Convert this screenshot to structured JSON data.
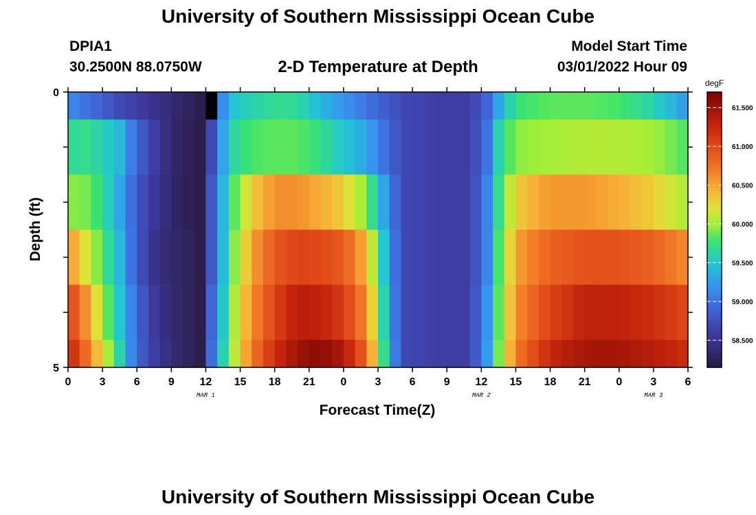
{
  "header": {
    "title": "University of Southern Mississippi Ocean Cube",
    "station_id": "DPIA1",
    "station_coords": "30.2500N  88.0750W",
    "plot_title": "2-D Temperature at Depth",
    "start_label": "Model Start Time",
    "start_value": "03/01/2022 Hour 09"
  },
  "footer": {
    "title": "University of Southern Mississippi Ocean Cube"
  },
  "chart_data": {
    "type": "heatmap",
    "title": "2-D Temperature at Depth",
    "xlabel": "Forecast Time(Z)",
    "ylabel": "Depth (ft)",
    "x_tick_labels": [
      "0",
      "3",
      "6",
      "9",
      "12",
      "15",
      "18",
      "21",
      "0",
      "3",
      "6",
      "9",
      "12",
      "15",
      "18",
      "21",
      "0",
      "3",
      "6"
    ],
    "date_labels": [
      {
        "label": "MAR 1",
        "tick_index": 4
      },
      {
        "label": "MAR 2",
        "tick_index": 12
      },
      {
        "label": "MAR 3",
        "tick_index": 17
      }
    ],
    "x_range_hours": [
      0,
      54
    ],
    "y_tick_labels": [
      "0",
      "5"
    ],
    "y_range_ft": [
      0,
      5
    ],
    "colorbar": {
      "unit": "degF",
      "tick_labels": [
        "61.500",
        "61.000",
        "60.500",
        "60.000",
        "59.500",
        "59.000",
        "58.500"
      ],
      "tick_values": [
        61.5,
        61.0,
        60.5,
        60.0,
        59.5,
        59.0,
        58.5
      ],
      "range": [
        58.15,
        61.7
      ]
    },
    "depth_layers_ft": [
      0.25,
      1.0,
      2.0,
      3.0,
      4.0,
      4.75
    ],
    "depth_layer_bounds_ft": [
      0,
      0.5,
      1.5,
      2.5,
      3.5,
      4.5,
      5.0
    ],
    "key_hours": [
      0,
      1.5,
      3,
      4.5,
      6,
      8,
      10,
      11.5,
      12,
      12.5,
      14,
      16,
      18,
      20,
      22,
      24,
      26,
      27.5,
      29,
      32,
      35,
      36.5,
      37.5,
      39,
      42,
      45,
      48,
      51,
      54
    ],
    "values": [
      [
        59.15,
        59.0,
        58.85,
        58.7,
        58.6,
        58.45,
        58.3,
        58.2,
        58.15,
        58.6,
        59.45,
        59.6,
        59.7,
        59.65,
        59.4,
        59.2,
        59.0,
        58.85,
        58.7,
        58.6,
        58.6,
        58.9,
        59.3,
        59.75,
        59.85,
        59.85,
        59.8,
        59.6,
        59.2
      ],
      [
        59.65,
        59.7,
        59.6,
        59.4,
        58.9,
        58.5,
        58.25,
        58.2,
        58.2,
        58.7,
        59.6,
        59.8,
        59.85,
        59.85,
        59.7,
        59.5,
        59.3,
        59.0,
        58.7,
        58.6,
        58.6,
        59.0,
        59.6,
        59.95,
        60.0,
        60.05,
        60.05,
        60.0,
        59.8
      ],
      [
        59.95,
        59.9,
        59.7,
        59.3,
        58.8,
        58.45,
        58.25,
        58.2,
        58.2,
        58.8,
        59.7,
        60.3,
        60.6,
        60.6,
        60.45,
        60.3,
        59.9,
        59.3,
        58.7,
        58.6,
        58.6,
        59.1,
        59.7,
        60.3,
        60.55,
        60.55,
        60.45,
        60.3,
        60.0
      ],
      [
        60.6,
        60.2,
        59.8,
        59.4,
        58.8,
        58.4,
        58.3,
        58.2,
        58.2,
        58.8,
        59.75,
        60.5,
        60.9,
        61.05,
        61.0,
        60.9,
        60.4,
        59.5,
        58.7,
        58.6,
        58.6,
        59.1,
        59.8,
        60.5,
        60.85,
        60.95,
        60.95,
        60.85,
        60.6
      ],
      [
        61.1,
        60.6,
        60.0,
        59.5,
        58.9,
        58.45,
        58.3,
        58.2,
        58.2,
        58.9,
        59.85,
        60.6,
        61.05,
        61.35,
        61.3,
        61.1,
        60.6,
        59.6,
        58.7,
        58.6,
        58.6,
        59.2,
        59.85,
        60.6,
        61.05,
        61.3,
        61.3,
        61.2,
        61.0
      ],
      [
        61.3,
        60.8,
        60.2,
        59.6,
        58.9,
        58.5,
        58.3,
        58.2,
        58.2,
        58.95,
        59.9,
        60.7,
        61.2,
        61.5,
        61.6,
        61.4,
        60.8,
        59.7,
        58.7,
        58.6,
        58.6,
        59.25,
        59.9,
        60.7,
        61.25,
        61.45,
        61.45,
        61.35,
        61.2
      ]
    ],
    "missing_cell": {
      "hour": 12,
      "depth_layer": 0
    },
    "grid": false
  }
}
